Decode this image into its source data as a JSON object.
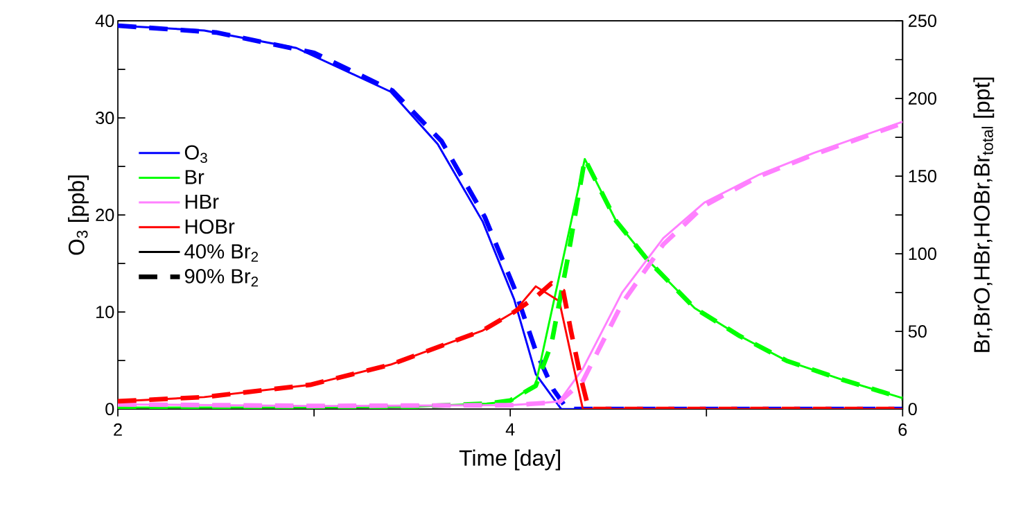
{
  "chart_data": {
    "type": "line",
    "xlabel": "Time [day]",
    "ylabel": "O$_{3}$ [ppb]",
    "y2label": "Br,BrO,HBr,HOBr,Br$_{total}$ [ppt]",
    "xlim": [
      2,
      6
    ],
    "xticks": [
      2,
      {
        "value": 3,
        "label": null
      },
      4,
      {
        "value": 5,
        "label": null
      },
      6
    ],
    "ylim": [
      0,
      40
    ],
    "yticks": [
      0,
      {
        "value": 5,
        "label": null
      },
      10,
      {
        "value": 15,
        "label": null
      },
      20,
      {
        "value": 25,
        "label": null
      },
      30,
      {
        "value": 35,
        "label": null
      },
      40
    ],
    "y2lim": [
      0,
      250
    ],
    "y2ticks": [
      0,
      {
        "value": 25,
        "label": null
      },
      50,
      {
        "value": 75,
        "label": null
      },
      100,
      {
        "value": 125,
        "label": null
      },
      150,
      {
        "value": 175,
        "label": null
      },
      200,
      {
        "value": 225,
        "label": null
      },
      250
    ],
    "legend": "left",
    "marker": "none",
    "annotations": [
      "40% Br$_{2}$",
      "90% Br$_{2}$"
    ],
    "series": [
      {
        "name": "O$_{3}$",
        "color": "#0000ff",
        "line_style": "solid",
        "x": [
          2,
          2.44,
          2.91,
          3.39,
          3.63,
          3.86,
          4.02,
          4.13,
          4.26,
          6
        ],
        "values": [
          39.5,
          39.0,
          37.2,
          32.7,
          27.3,
          19.3,
          11.3,
          3.6,
          0,
          0
        ]
      },
      {
        "name": "Br",
        "color": "#00ff00",
        "line_style": "solid",
        "axis": "y2",
        "x": [
          2,
          3,
          3.5,
          3.88,
          4.0,
          4.13,
          4.38,
          4.54,
          4.7,
          4.94,
          5.17,
          5.41,
          5.69,
          6
        ],
        "values": [
          1,
          1,
          1.5,
          3.5,
          5,
          16,
          161,
          121,
          96,
          65,
          47,
          31,
          19,
          7
        ]
      },
      {
        "name": "HBr",
        "color": "#ff80ff",
        "line_style": "solid",
        "axis": "y2",
        "x": [
          2,
          3,
          4,
          4.13,
          4.25,
          4.37,
          4.57,
          4.78,
          4.99,
          5.27,
          5.55,
          6
        ],
        "values": [
          3,
          2,
          2.5,
          3.5,
          5,
          26,
          75,
          110,
          133,
          151,
          165,
          185
        ]
      },
      {
        "name": "HOBr",
        "color": "#ff0000",
        "line_style": "solid",
        "axis": "y2",
        "x": [
          2,
          2.44,
          2.98,
          3.39,
          3.86,
          4.02,
          4.13,
          4.25,
          4.37,
          6
        ],
        "values": [
          5,
          7.7,
          15.6,
          28.6,
          50.6,
          62.5,
          79,
          69.5,
          0,
          0
        ]
      },
      {
        "color": "#0000ff",
        "line_style": "dashed",
        "x": [
          2,
          2.5,
          3.0,
          3.4,
          3.65,
          3.87,
          4.02,
          4.13,
          4.22,
          4.29,
          6
        ],
        "values": [
          39.5,
          38.8,
          36.7,
          32.8,
          27.6,
          19.8,
          12.5,
          6,
          2,
          0,
          0
        ]
      },
      {
        "color": "#00ff00",
        "line_style": "dashed",
        "axis": "y2",
        "x": [
          2,
          3,
          3.5,
          3.88,
          4.0,
          4.13,
          4.21,
          4.29,
          4.38,
          4.54,
          4.7,
          4.94,
          5.17,
          5.41,
          5.69,
          6
        ],
        "values": [
          1,
          1,
          1.5,
          3.5,
          5.5,
          15,
          42,
          95,
          161,
          121,
          96,
          65,
          47,
          31,
          19,
          7
        ]
      },
      {
        "color": "#ff80ff",
        "line_style": "dashed",
        "axis": "y2",
        "x": [
          2,
          3,
          4,
          4.13,
          4.25,
          4.37,
          4.57,
          4.78,
          4.99,
          5.27,
          5.55,
          6
        ],
        "values": [
          3,
          2,
          2.5,
          3.5,
          4.5,
          18,
          68,
          106,
          131,
          150,
          164,
          184
        ]
      },
      {
        "color": "#ff0000",
        "line_style": "dashed",
        "axis": "y2",
        "x": [
          2,
          2.44,
          2.98,
          3.39,
          3.86,
          4.02,
          4.13,
          4.21,
          4.27,
          4.31,
          4.36,
          4.4,
          6
        ],
        "values": [
          5,
          7.7,
          15.6,
          28.6,
          50.6,
          62.5,
          72,
          81,
          76,
          50,
          20,
          0,
          0
        ]
      }
    ]
  }
}
